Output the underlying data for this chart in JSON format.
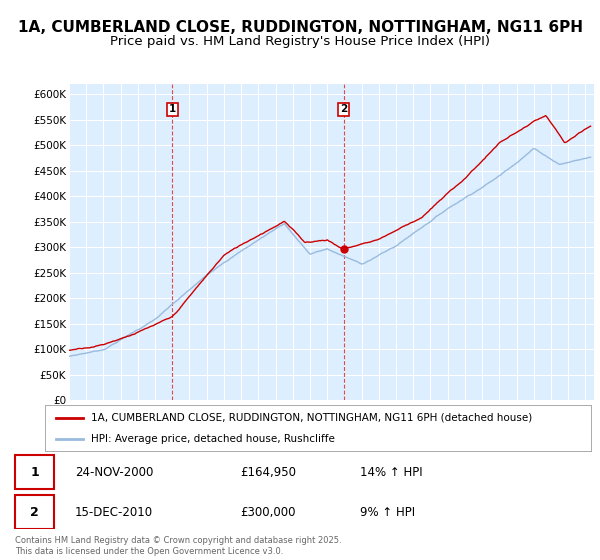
{
  "title_line1": "1A, CUMBERLAND CLOSE, RUDDINGTON, NOTTINGHAM, NG11 6PH",
  "title_line2": "Price paid vs. HM Land Registry's House Price Index (HPI)",
  "ylim": [
    0,
    620000
  ],
  "yticks": [
    0,
    50000,
    100000,
    150000,
    200000,
    250000,
    300000,
    350000,
    400000,
    450000,
    500000,
    550000,
    600000
  ],
  "ytick_labels": [
    "£0",
    "£50K",
    "£100K",
    "£150K",
    "£200K",
    "£250K",
    "£300K",
    "£350K",
    "£400K",
    "£450K",
    "£500K",
    "£550K",
    "£600K"
  ],
  "legend_line1": "1A, CUMBERLAND CLOSE, RUDDINGTON, NOTTINGHAM, NG11 6PH (detached house)",
  "legend_line2": "HPI: Average price, detached house, Rushcliffe",
  "red_color": "#cc0000",
  "blue_color": "#99bbdd",
  "background_color": "#ddeeff",
  "grid_color": "#ffffff",
  "fig_bg_color": "#ffffff",
  "sale1_date": 2001.0,
  "sale2_date": 2010.95,
  "footer": "Contains HM Land Registry data © Crown copyright and database right 2025.\nThis data is licensed under the Open Government Licence v3.0.",
  "title_fontsize": 11,
  "subtitle_fontsize": 9.5,
  "tick_fontsize": 7.5,
  "legend_fontsize": 7.5
}
